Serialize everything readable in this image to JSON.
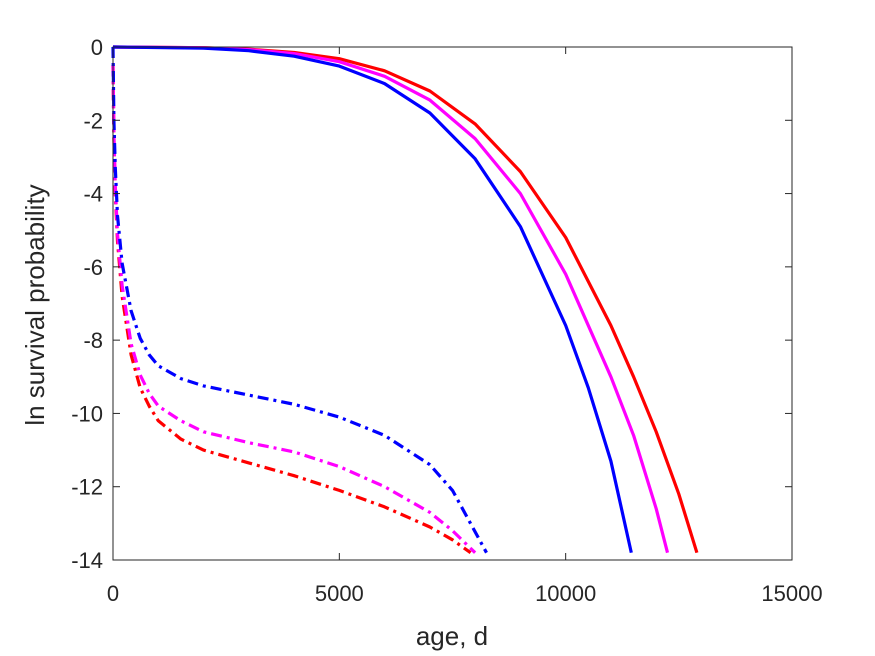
{
  "chart_data": {
    "type": "line",
    "title": "",
    "xlabel": "age, d",
    "ylabel": "ln survival probability",
    "xlim": [
      0,
      15000
    ],
    "ylim": [
      -14,
      0
    ],
    "xticks": [
      0,
      5000,
      10000,
      15000
    ],
    "yticks": [
      0,
      -2,
      -4,
      -6,
      -8,
      -10,
      -12,
      -14
    ],
    "xtick_labels": [
      "0",
      "5000",
      "10000",
      "15000"
    ],
    "ytick_labels": [
      "0",
      "-2",
      "-4",
      "-6",
      "-8",
      "-10",
      "-12",
      "-14"
    ],
    "grid": false,
    "legend": "none",
    "series": [
      {
        "color": "#ff0000",
        "style": "solid",
        "x": [
          0,
          2000,
          3000,
          4000,
          5000,
          6000,
          7000,
          8000,
          9000,
          10000,
          11000,
          11500,
          12000,
          12500,
          12900
        ],
        "y": [
          0,
          -0.02,
          -0.06,
          -0.15,
          -0.32,
          -0.65,
          -1.2,
          -2.1,
          -3.4,
          -5.2,
          -7.6,
          -9.0,
          -10.5,
          -12.2,
          -13.8
        ]
      },
      {
        "color": "#ff00ff",
        "style": "solid",
        "x": [
          0,
          2000,
          3000,
          4000,
          5000,
          6000,
          7000,
          8000,
          9000,
          10000,
          11000,
          11500,
          12000,
          12250
        ],
        "y": [
          0,
          -0.02,
          -0.07,
          -0.18,
          -0.4,
          -0.8,
          -1.45,
          -2.5,
          -4.0,
          -6.2,
          -9.0,
          -10.6,
          -12.6,
          -13.8
        ]
      },
      {
        "color": "#0000ff",
        "style": "solid",
        "x": [
          0,
          2000,
          3000,
          4000,
          5000,
          6000,
          7000,
          8000,
          9000,
          10000,
          10500,
          11000,
          11450
        ],
        "y": [
          0,
          -0.03,
          -0.1,
          -0.25,
          -0.52,
          -1.0,
          -1.8,
          -3.05,
          -4.9,
          -7.6,
          -9.3,
          -11.3,
          -13.8
        ]
      },
      {
        "color": "#ff0000",
        "style": "dashdot",
        "x": [
          0,
          20,
          50,
          100,
          200,
          400,
          600,
          800,
          1000,
          1500,
          2000,
          3000,
          4000,
          5000,
          6000,
          7000,
          7500,
          7900
        ],
        "y": [
          -0.5,
          -2.5,
          -4.0,
          -5.3,
          -6.8,
          -8.4,
          -9.3,
          -9.8,
          -10.2,
          -10.7,
          -11.0,
          -11.35,
          -11.7,
          -12.1,
          -12.55,
          -13.1,
          -13.45,
          -13.8
        ]
      },
      {
        "color": "#ff00ff",
        "style": "dashdot",
        "x": [
          0,
          20,
          50,
          100,
          200,
          400,
          600,
          800,
          1000,
          1500,
          2000,
          3000,
          4000,
          5000,
          6000,
          7000,
          7500,
          8000
        ],
        "y": [
          -0.5,
          -2.4,
          -3.8,
          -5.1,
          -6.5,
          -8.1,
          -8.95,
          -9.45,
          -9.8,
          -10.2,
          -10.5,
          -10.8,
          -11.05,
          -11.45,
          -12.0,
          -12.7,
          -13.2,
          -13.8
        ]
      },
      {
        "color": "#0000ff",
        "style": "dashdot",
        "x": [
          0,
          20,
          50,
          100,
          200,
          400,
          600,
          800,
          1000,
          1500,
          2000,
          3000,
          4000,
          5000,
          6000,
          7000,
          7500,
          8250
        ],
        "y": [
          0,
          -2.0,
          -3.3,
          -4.6,
          -5.9,
          -7.2,
          -7.95,
          -8.4,
          -8.7,
          -9.05,
          -9.25,
          -9.5,
          -9.75,
          -10.1,
          -10.6,
          -11.4,
          -12.1,
          -13.8
        ]
      }
    ]
  }
}
